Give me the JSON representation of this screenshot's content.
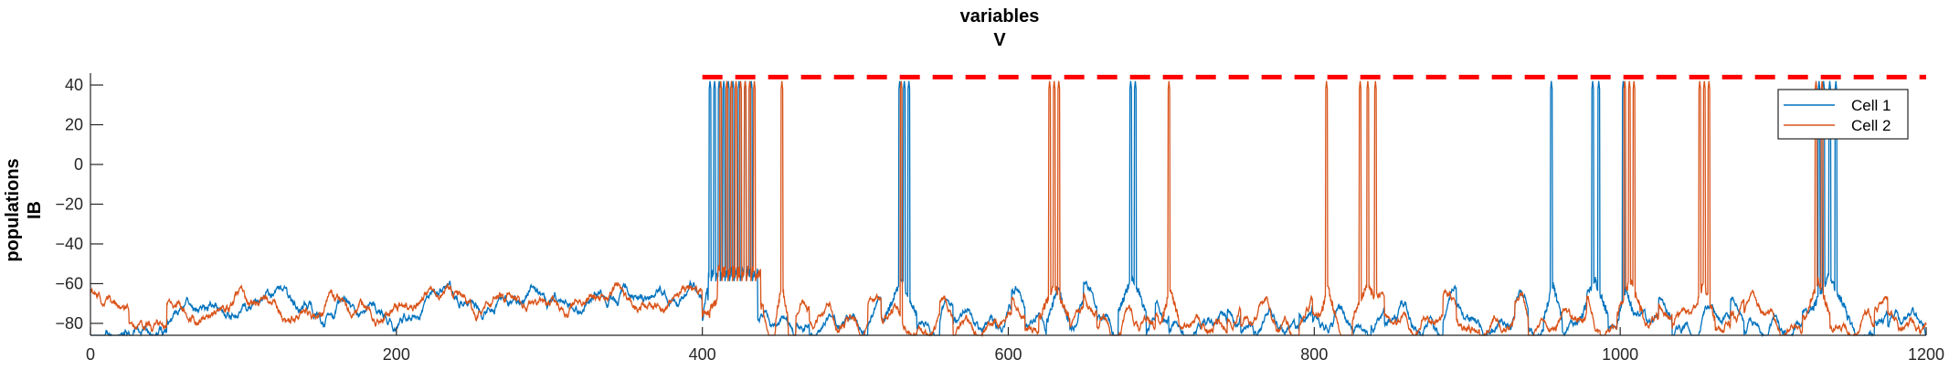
{
  "chart_data": {
    "type": "line",
    "title_lines": [
      "variables",
      "V"
    ],
    "ylabel_lines": [
      "populations",
      "IB"
    ],
    "xlabel": "",
    "xlim": [
      0,
      1200
    ],
    "ylim": [
      -86,
      46
    ],
    "x_ticks": [
      0,
      200,
      400,
      600,
      800,
      1000,
      1200
    ],
    "y_ticks": [
      40,
      20,
      0,
      -20,
      -40,
      -60,
      -80
    ],
    "x_tick_labels": [
      "0",
      "200",
      "400",
      "600",
      "800",
      "1000",
      "1200"
    ],
    "y_tick_labels": [
      "40",
      "20",
      "0",
      "−20",
      "−40",
      "−60",
      "−80"
    ],
    "grid": false,
    "legend_position": "top-right",
    "threshold": {
      "y": 44,
      "x_start": 400,
      "x_end": 1200,
      "color": "#ff0000",
      "style": "dashed"
    },
    "series": [
      {
        "name": "Cell 1",
        "color": "#0072bd",
        "spike_times": [
          405,
          408,
          411,
          414,
          417,
          420,
          424,
          428,
          432,
          529,
          532,
          535,
          680,
          683,
          955,
          982,
          986,
          1002,
          1130,
          1133,
          1137,
          1141
        ],
        "burst_windows": [
          [
            404,
            436
          ]
        ],
        "depolarizations": [
          [
            400,
            406,
            -62
          ],
          [
            520,
            540,
            -58
          ],
          [
            625,
            640,
            -62
          ],
          [
            672,
            690,
            -56
          ],
          [
            950,
            962,
            -60
          ],
          [
            975,
            992,
            -58
          ],
          [
            998,
            1010,
            -62
          ],
          [
            1125,
            1148,
            -56
          ]
        ]
      },
      {
        "name": "Cell 2",
        "color": "#d95319",
        "spike_times": [
          412,
          416,
          419,
          422,
          425,
          428,
          431,
          434,
          452,
          530,
          627,
          630,
          633,
          705,
          808,
          830,
          835,
          840,
          1003,
          1006,
          1009,
          1052,
          1055,
          1058,
          1128,
          1132
        ],
        "burst_windows": [
          [
            410,
            438
          ]
        ],
        "depolarizations": [
          [
            405,
            440,
            -55
          ],
          [
            448,
            456,
            -60
          ],
          [
            620,
            640,
            -60
          ],
          [
            700,
            712,
            -62
          ],
          [
            803,
            815,
            -62
          ],
          [
            825,
            845,
            -60
          ],
          [
            998,
            1015,
            -58
          ],
          [
            1047,
            1062,
            -60
          ],
          [
            1122,
            1137,
            -58
          ]
        ]
      }
    ]
  }
}
